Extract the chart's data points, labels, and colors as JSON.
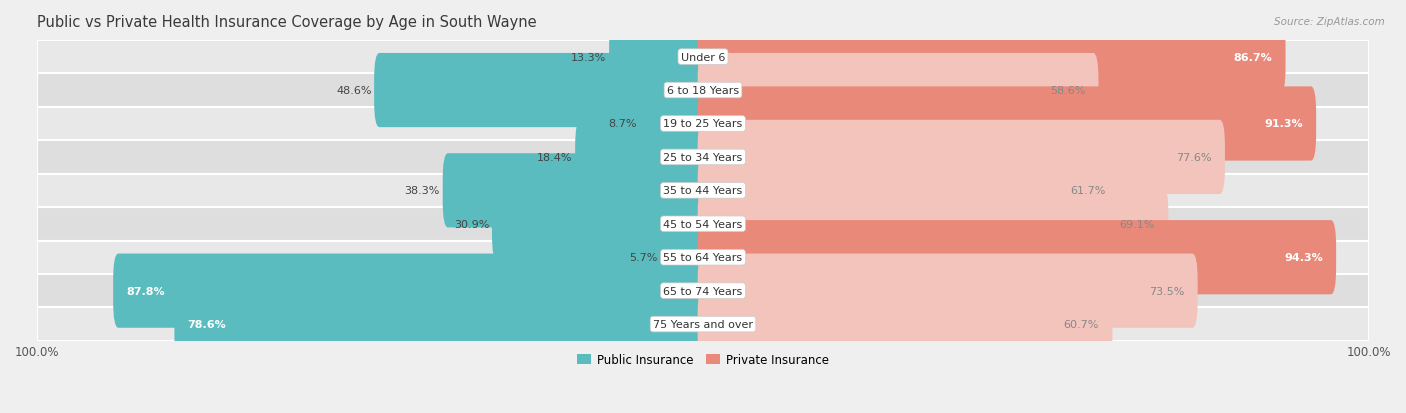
{
  "title": "Public vs Private Health Insurance Coverage by Age in South Wayne",
  "source": "Source: ZipAtlas.com",
  "categories": [
    "Under 6",
    "6 to 18 Years",
    "19 to 25 Years",
    "25 to 34 Years",
    "35 to 44 Years",
    "45 to 54 Years",
    "55 to 64 Years",
    "65 to 74 Years",
    "75 Years and over"
  ],
  "public_values": [
    13.3,
    48.6,
    8.7,
    18.4,
    38.3,
    30.9,
    5.7,
    87.8,
    78.6
  ],
  "private_values": [
    86.7,
    58.6,
    91.3,
    77.6,
    61.7,
    69.1,
    94.3,
    73.5,
    60.7
  ],
  "public_color": "#5bbcbf",
  "private_color": "#e8897a",
  "private_color_light": "#f2c4bc",
  "background_color": "#efefef",
  "bar_bg_color": "#e2e2e2",
  "row_bg_even": "#e8e8e8",
  "row_bg_odd": "#dcdcdc",
  "bar_height": 0.62,
  "title_fontsize": 10.5,
  "label_fontsize": 8,
  "category_fontsize": 8,
  "legend_fontsize": 8.5,
  "source_fontsize": 7.5
}
